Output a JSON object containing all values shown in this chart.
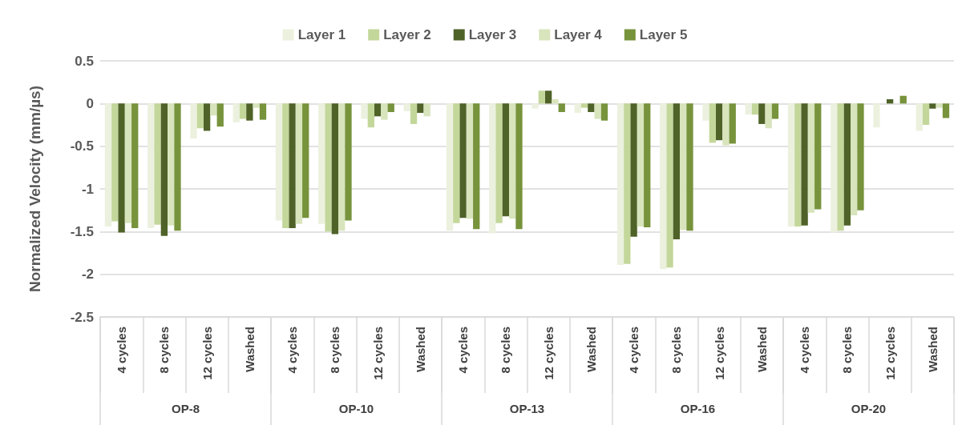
{
  "chart_data": {
    "type": "bar",
    "ylabel": "Normalized Velocity (mm/µs)",
    "categories": [
      "4 cycles",
      "8 cycles",
      "12 cycles",
      "Washed",
      "4 cycles",
      "8 cycles",
      "12 cycles",
      "Washed",
      "4 cycles",
      "8 cycles",
      "12 cycles",
      "Washed",
      "4 cycles",
      "8 cycles",
      "12 cycles",
      "Washed",
      "4 cycles",
      "8 cycles",
      "12 cycles",
      "Washed"
    ],
    "annotations": [
      "OP-8",
      "OP-10",
      "OP-13",
      "OP-16",
      "OP-20"
    ],
    "series": [
      {
        "name": "Layer 1",
        "color": "#ebf1de",
        "values": [
          -1.44,
          -1.46,
          -0.41,
          -0.22,
          -1.37,
          -1.41,
          -0.18,
          -0.09,
          -1.49,
          -1.52,
          -0.06,
          -0.11,
          -1.89,
          -1.94,
          -0.2,
          -0.13,
          -1.44,
          -1.51,
          -0.28,
          -0.32
        ]
      },
      {
        "name": "Layer 2",
        "color": "#c4d79b",
        "values": [
          -1.38,
          -1.42,
          -0.29,
          -0.18,
          -1.46,
          -1.5,
          -0.28,
          -0.24,
          -1.4,
          -1.4,
          0.15,
          -0.05,
          -1.88,
          -1.92,
          -0.46,
          -0.13,
          -1.44,
          -1.49,
          null,
          -0.25
        ]
      },
      {
        "name": "Layer 3",
        "color": "#4f6228",
        "values": [
          -1.51,
          -1.55,
          -0.32,
          -0.2,
          -1.46,
          -1.53,
          -0.15,
          -0.11,
          -1.34,
          -1.32,
          0.15,
          -0.1,
          -1.56,
          -1.59,
          -0.43,
          -0.24,
          -1.43,
          -1.43,
          0.05,
          -0.06
        ]
      },
      {
        "name": "Layer 4",
        "color": "#d8e4bc",
        "values": [
          -1.4,
          -1.43,
          -0.14,
          -0.05,
          -1.41,
          -1.49,
          -0.19,
          -0.15,
          -1.35,
          -1.35,
          0.05,
          -0.18,
          -1.44,
          -1.48,
          -0.49,
          -0.29,
          -1.28,
          -1.31,
          null,
          -0.05
        ]
      },
      {
        "name": "Layer 5",
        "color": "#77933c",
        "values": [
          -1.46,
          -1.49,
          -0.27,
          -0.19,
          -1.34,
          -1.37,
          -0.1,
          null,
          -1.47,
          -1.47,
          -0.1,
          -0.2,
          -1.45,
          -1.49,
          -0.47,
          -0.18,
          -1.24,
          -1.25,
          0.09,
          -0.17
        ]
      }
    ],
    "ylim": [
      -2.5,
      0.5
    ],
    "yticks": [
      -2.5,
      -2,
      -1.5,
      -1,
      -0.5,
      0,
      0.5
    ],
    "grid": "y",
    "legend": "top"
  }
}
